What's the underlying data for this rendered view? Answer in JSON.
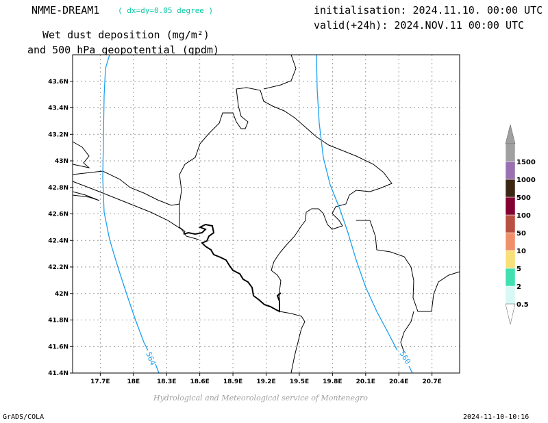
{
  "header": {
    "model_name": "NMME-DREAM1",
    "resolution": "( dx=dy=0.05 degree )",
    "initialisation": "initialisation: 2024.11.10. 00:00 UTC",
    "valid": "valid(+24h): 2024.NOV.11 00:00 UTC",
    "subtitle_line1": "Wet dust deposition (mg/m²)",
    "subtitle_line2": "and 500 hPa geopotential (gpdm)"
  },
  "map": {
    "lat_labels": [
      "43.6N",
      "43.4N",
      "43.2N",
      "43N",
      "42.8N",
      "42.6N",
      "42.4N",
      "42.2N",
      "42N",
      "41.8N",
      "41.6N",
      "41.4N"
    ],
    "lon_labels": [
      "17.7E",
      "18E",
      "18.3E",
      "18.6E",
      "18.9E",
      "19.2E",
      "19.5E",
      "19.8E",
      "20.1E",
      "20.4E",
      "20.7E"
    ],
    "lat_range": [
      41.4,
      43.8
    ],
    "lon_range": [
      17.45,
      20.95
    ],
    "grid": true,
    "contours": [
      {
        "label": "564",
        "color": "#1aa0f0"
      },
      {
        "label": "560",
        "color": "#1aa0f0"
      }
    ]
  },
  "colorbar": {
    "levels": [
      "0.5",
      "2",
      "5",
      "10",
      "50",
      "100",
      "500",
      "1000",
      "1500"
    ],
    "colors": [
      "#d8f8f5",
      "#40e0b0",
      "#f8e078",
      "#f0906a",
      "#b85042",
      "#840030",
      "#3c2614",
      "#9a70b0",
      "#a0a0a0"
    ]
  },
  "footer": {
    "credit": "Hydrological and Meteorological service of Montenegro",
    "software": "GrADS/COLA",
    "timestamp": "2024-11-10-10:16"
  }
}
